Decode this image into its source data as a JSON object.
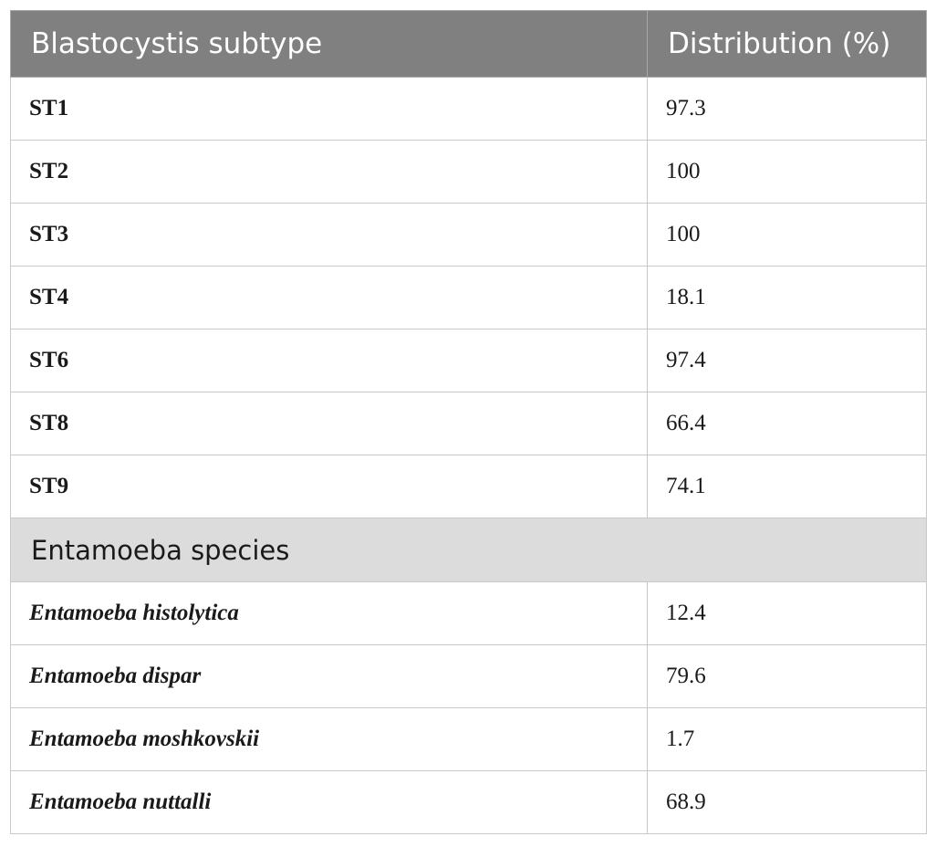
{
  "table": {
    "headers": [
      "Blastocystis subtype",
      "Distribution (%)"
    ],
    "subtype_rows": [
      {
        "label": "ST1",
        "value": "97.3"
      },
      {
        "label": "ST2",
        "value": "100"
      },
      {
        "label": "ST3",
        "value": "100"
      },
      {
        "label": "ST4",
        "value": "18.1"
      },
      {
        "label": "ST6",
        "value": "97.4"
      },
      {
        "label": "ST8",
        "value": "66.4"
      },
      {
        "label": "ST9",
        "value": "74.1"
      }
    ],
    "section_label": "Entamoeba species",
    "species_rows": [
      {
        "label": "Entamoeba histolytica",
        "value": "12.4"
      },
      {
        "label": "Entamoeba dispar",
        "value": "79.6"
      },
      {
        "label": "Entamoeba moshkovskii",
        "value": "1.7"
      },
      {
        "label": "Entamoeba nuttalli",
        "value": "68.9"
      }
    ]
  }
}
